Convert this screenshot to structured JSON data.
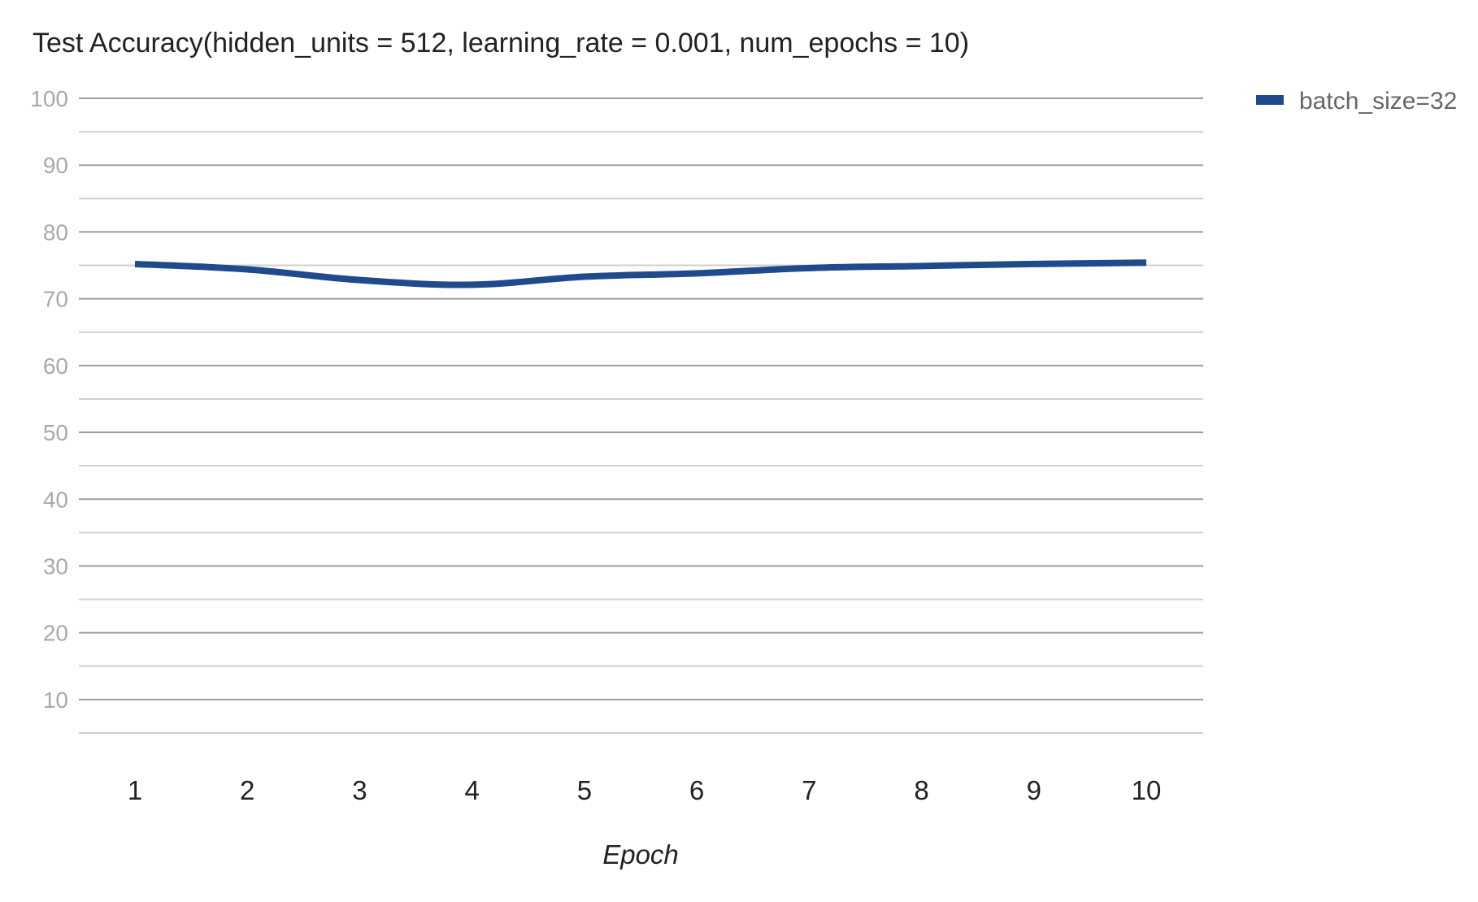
{
  "chart_data": {
    "type": "line",
    "title": "Test Accuracy(hidden_units = 512, learning_rate = 0.001, num_epochs = 10)",
    "xlabel": "Epoch",
    "ylabel": "",
    "categories": [
      "1",
      "2",
      "3",
      "4",
      "5",
      "6",
      "7",
      "8",
      "9",
      "10"
    ],
    "series": [
      {
        "name": "batch_size=32",
        "color": "#1f4a8c",
        "values": [
          75.2,
          74.4,
          72.8,
          72.1,
          73.3,
          73.8,
          74.6,
          74.9,
          75.2,
          75.4
        ]
      }
    ],
    "ylim": [
      5,
      100
    ],
    "y_ticks": [
      10,
      20,
      30,
      40,
      50,
      60,
      70,
      80,
      90,
      100
    ],
    "y_tick_labels": [
      "10",
      "20",
      "30",
      "40",
      "50",
      "60",
      "70",
      "80",
      "90",
      "100"
    ],
    "minor_gridlines": [
      5,
      15,
      25,
      35,
      45,
      55,
      65,
      75,
      85,
      95
    ],
    "grid": true,
    "smooth": true,
    "legend_position": "top-right"
  }
}
